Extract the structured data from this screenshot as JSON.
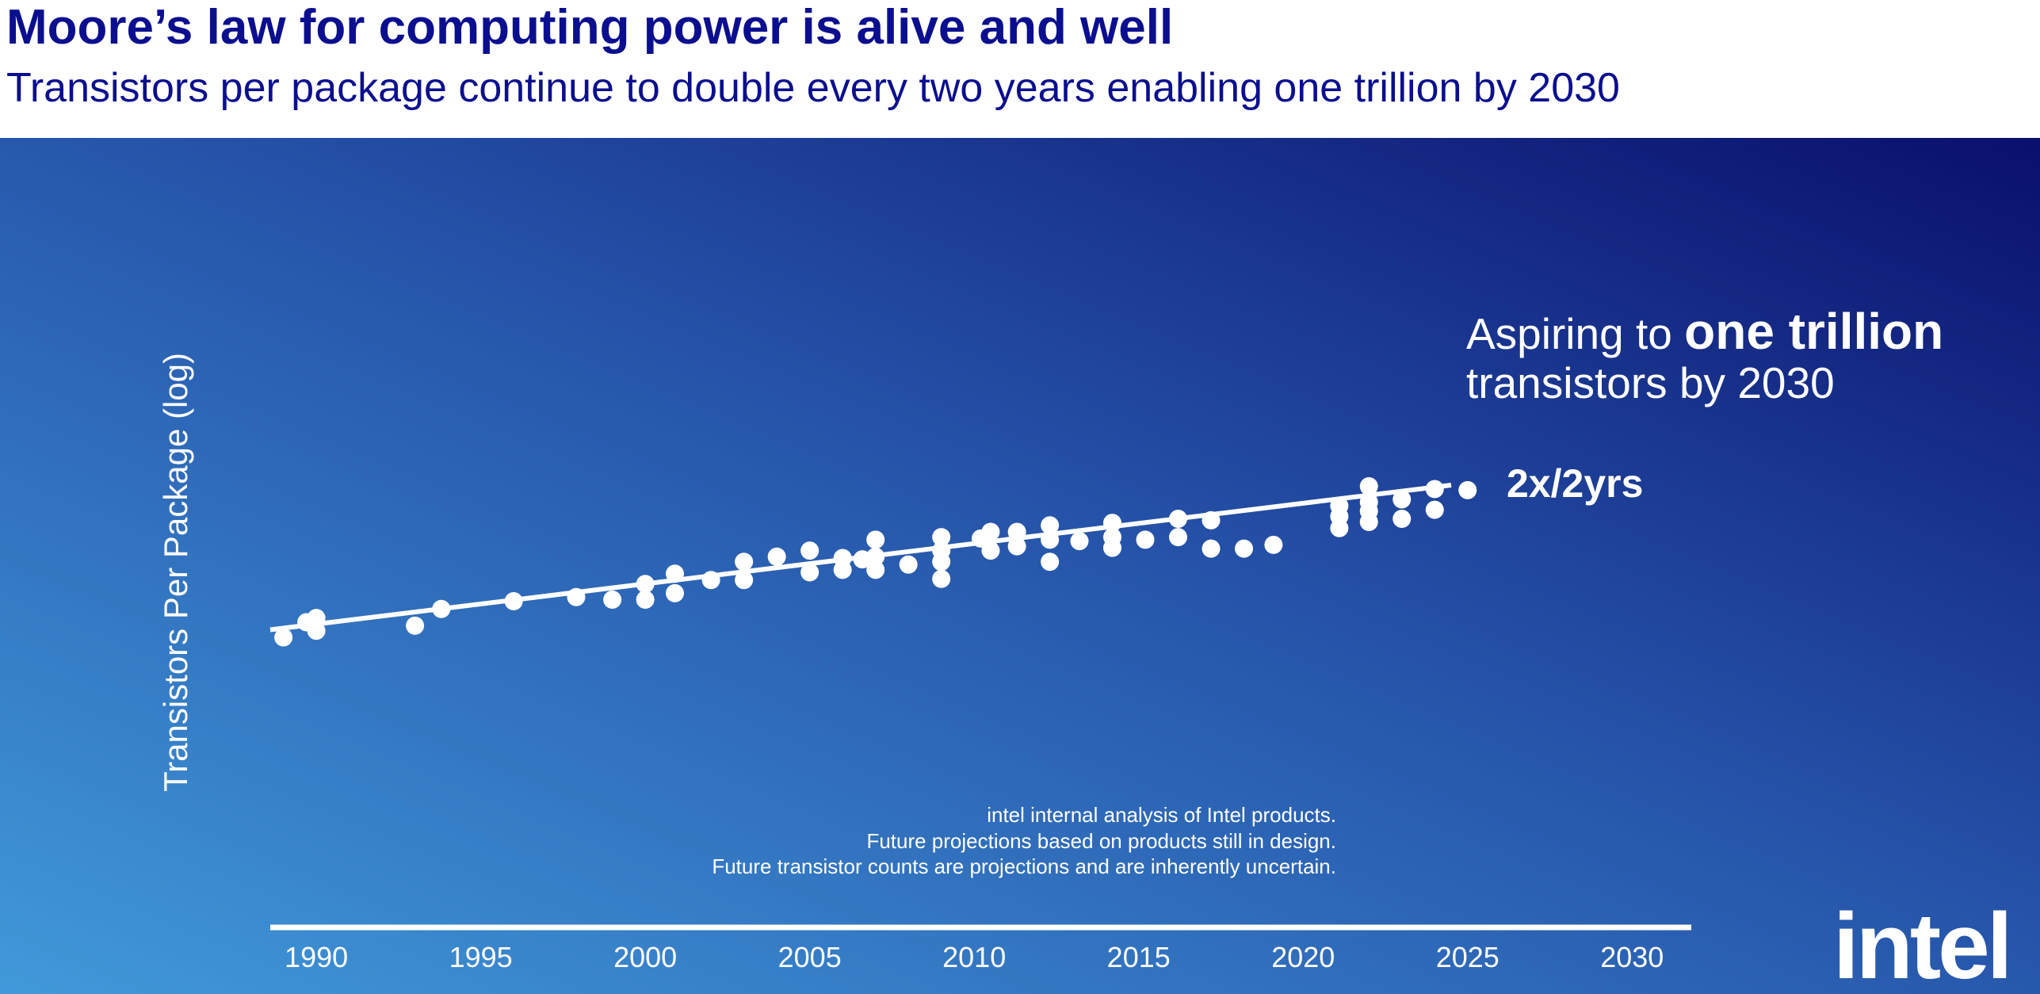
{
  "chart_data": {
    "type": "scatter",
    "title": "Moore’s law for computing power is alive and well",
    "subtitle": "Transistors per package continue to double every two years enabling one trillion by 2030",
    "ylabel": "Transistors Per Package (log)",
    "ylog": true,
    "ylim": [
      100,
      10000000000000000
    ],
    "xlim": [
      1988.6,
      2031.8
    ],
    "xticks": [
      1990,
      1995,
      2000,
      2005,
      2010,
      2015,
      2020,
      2025,
      2030
    ],
    "series": [
      {
        "type": "scatter",
        "color": "#ffffff",
        "x": [
          1989,
          1989.7,
          1990,
          1990,
          1993,
          1993.8,
          1996,
          1997.9,
          1999,
          2000,
          2000,
          2000.9,
          2000.9,
          2002,
          2003,
          2003,
          2004,
          2005,
          2005,
          2006,
          2006,
          2006.6,
          2007,
          2007,
          2007,
          2008,
          2009,
          2009,
          2009,
          2009,
          2010.2,
          2010.5,
          2010.5,
          2011.3,
          2011.3,
          2012.3,
          2012.3,
          2012.3,
          2013.2,
          2014.2,
          2014.2,
          2014.2,
          2015.2,
          2016.2,
          2016.2,
          2017.2,
          2017.2,
          2018.2,
          2019.1,
          2021.1,
          2021.1,
          2021.1,
          2022,
          2022,
          2022,
          2022,
          2023,
          2023,
          2024,
          2024,
          2025
        ],
        "values": [
          620000,
          2300000,
          3300000,
          1100000,
          1700000,
          7200000,
          14000000,
          20000000,
          16000000,
          62000000,
          16000000,
          150000000,
          28000000,
          87000000,
          420000000,
          87000000,
          650000000,
          1100000000,
          170000000,
          580000000,
          210000000,
          520000000,
          2800000000,
          650000000,
          210000000,
          330000000,
          3500000000,
          1100000000,
          420000000,
          96000000,
          3100000000,
          5500000000,
          1100000000,
          5500000000,
          1600000000,
          9700000000,
          2800000000,
          420000000,
          2500000000,
          12000000000,
          3500000000,
          1400000000,
          2800000000,
          17000000000,
          3500000000,
          15000000000,
          1300000000,
          1300000000,
          1800000000,
          52000000000,
          21000000000,
          7600000000,
          280000000000,
          72000000000,
          33000000000,
          13000000000,
          91000000000,
          17000000000,
          220000000000,
          37000000000,
          200000000000
        ]
      },
      {
        "type": "line",
        "color": "#ffffff",
        "x": [
          1988.6,
          2024.5
        ],
        "values": [
          1200000,
          310000000000
        ]
      }
    ],
    "annotations": [
      "Aspiring to ",
      "one trillion",
      "transistors by 2030",
      "2x/2yrs"
    ],
    "notes": [
      "intel internal analysis of Intel products.",
      "Future projections based on products still in design.",
      "Future transistor counts are projections and are inherently uncertain."
    ],
    "logo": "intel"
  }
}
